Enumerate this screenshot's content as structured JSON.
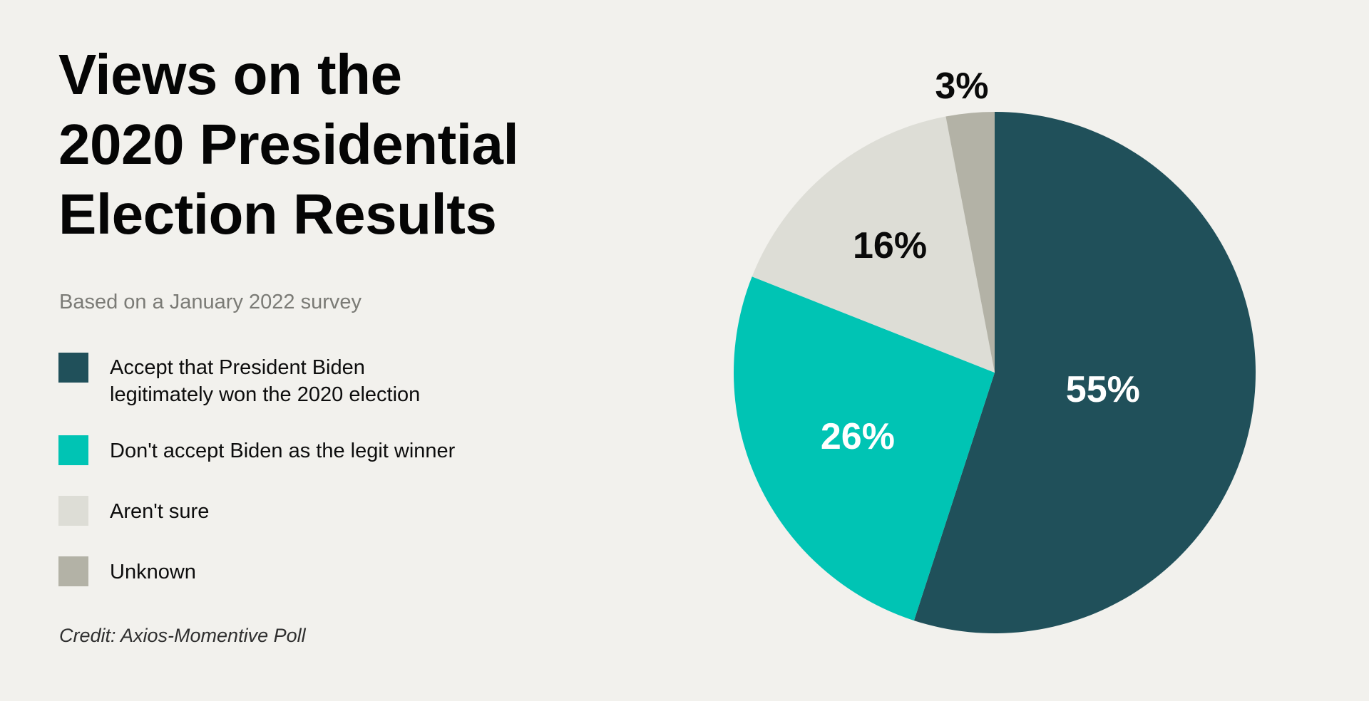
{
  "title": {
    "lines": [
      "Views on the",
      "2020 Presidential",
      "Election Results"
    ]
  },
  "subtitle": "Based on a January 2022 survey",
  "legend": {
    "items": [
      {
        "lines": [
          "Accept that President Biden",
          "legitimately won the 2020 election"
        ],
        "color": "#20505a"
      },
      {
        "lines": [
          "Don't accept Biden as the legit winner"
        ],
        "color": "#00c4b4"
      },
      {
        "lines": [
          "Aren't sure"
        ],
        "color": "#ddddd6"
      },
      {
        "lines": [
          "Unknown"
        ],
        "color": "#b3b2a6"
      }
    ]
  },
  "credit": "Credit: Axios-Momentive Poll",
  "colors": {
    "background": "#f2f1ed",
    "accept": "#20505a",
    "dont_accept": "#00c4b4",
    "not_sure": "#ddddd6",
    "unknown": "#b3b2a6"
  },
  "chart_data": {
    "type": "pie",
    "title": "Views on the 2020 Presidential Election Results",
    "subtitle": "Based on a January 2022 survey",
    "categories": [
      "Accept that President Biden legitimately won the 2020 election",
      "Don't accept Biden as the legit winner",
      "Aren't sure",
      "Unknown"
    ],
    "values": [
      55,
      26,
      16,
      3
    ],
    "labels": [
      "55%",
      "26%",
      "16%",
      "3%"
    ],
    "colors": [
      "#20505a",
      "#00c4b4",
      "#ddddd6",
      "#b3b2a6"
    ],
    "label_colors": [
      "#ffffff",
      "#ffffff",
      "#0a0a0a",
      "#0a0a0a"
    ],
    "start_angle": "12 o'clock",
    "direction": "clockwise",
    "legend_position": "left",
    "source": "Credit: Axios-Momentive Poll"
  }
}
